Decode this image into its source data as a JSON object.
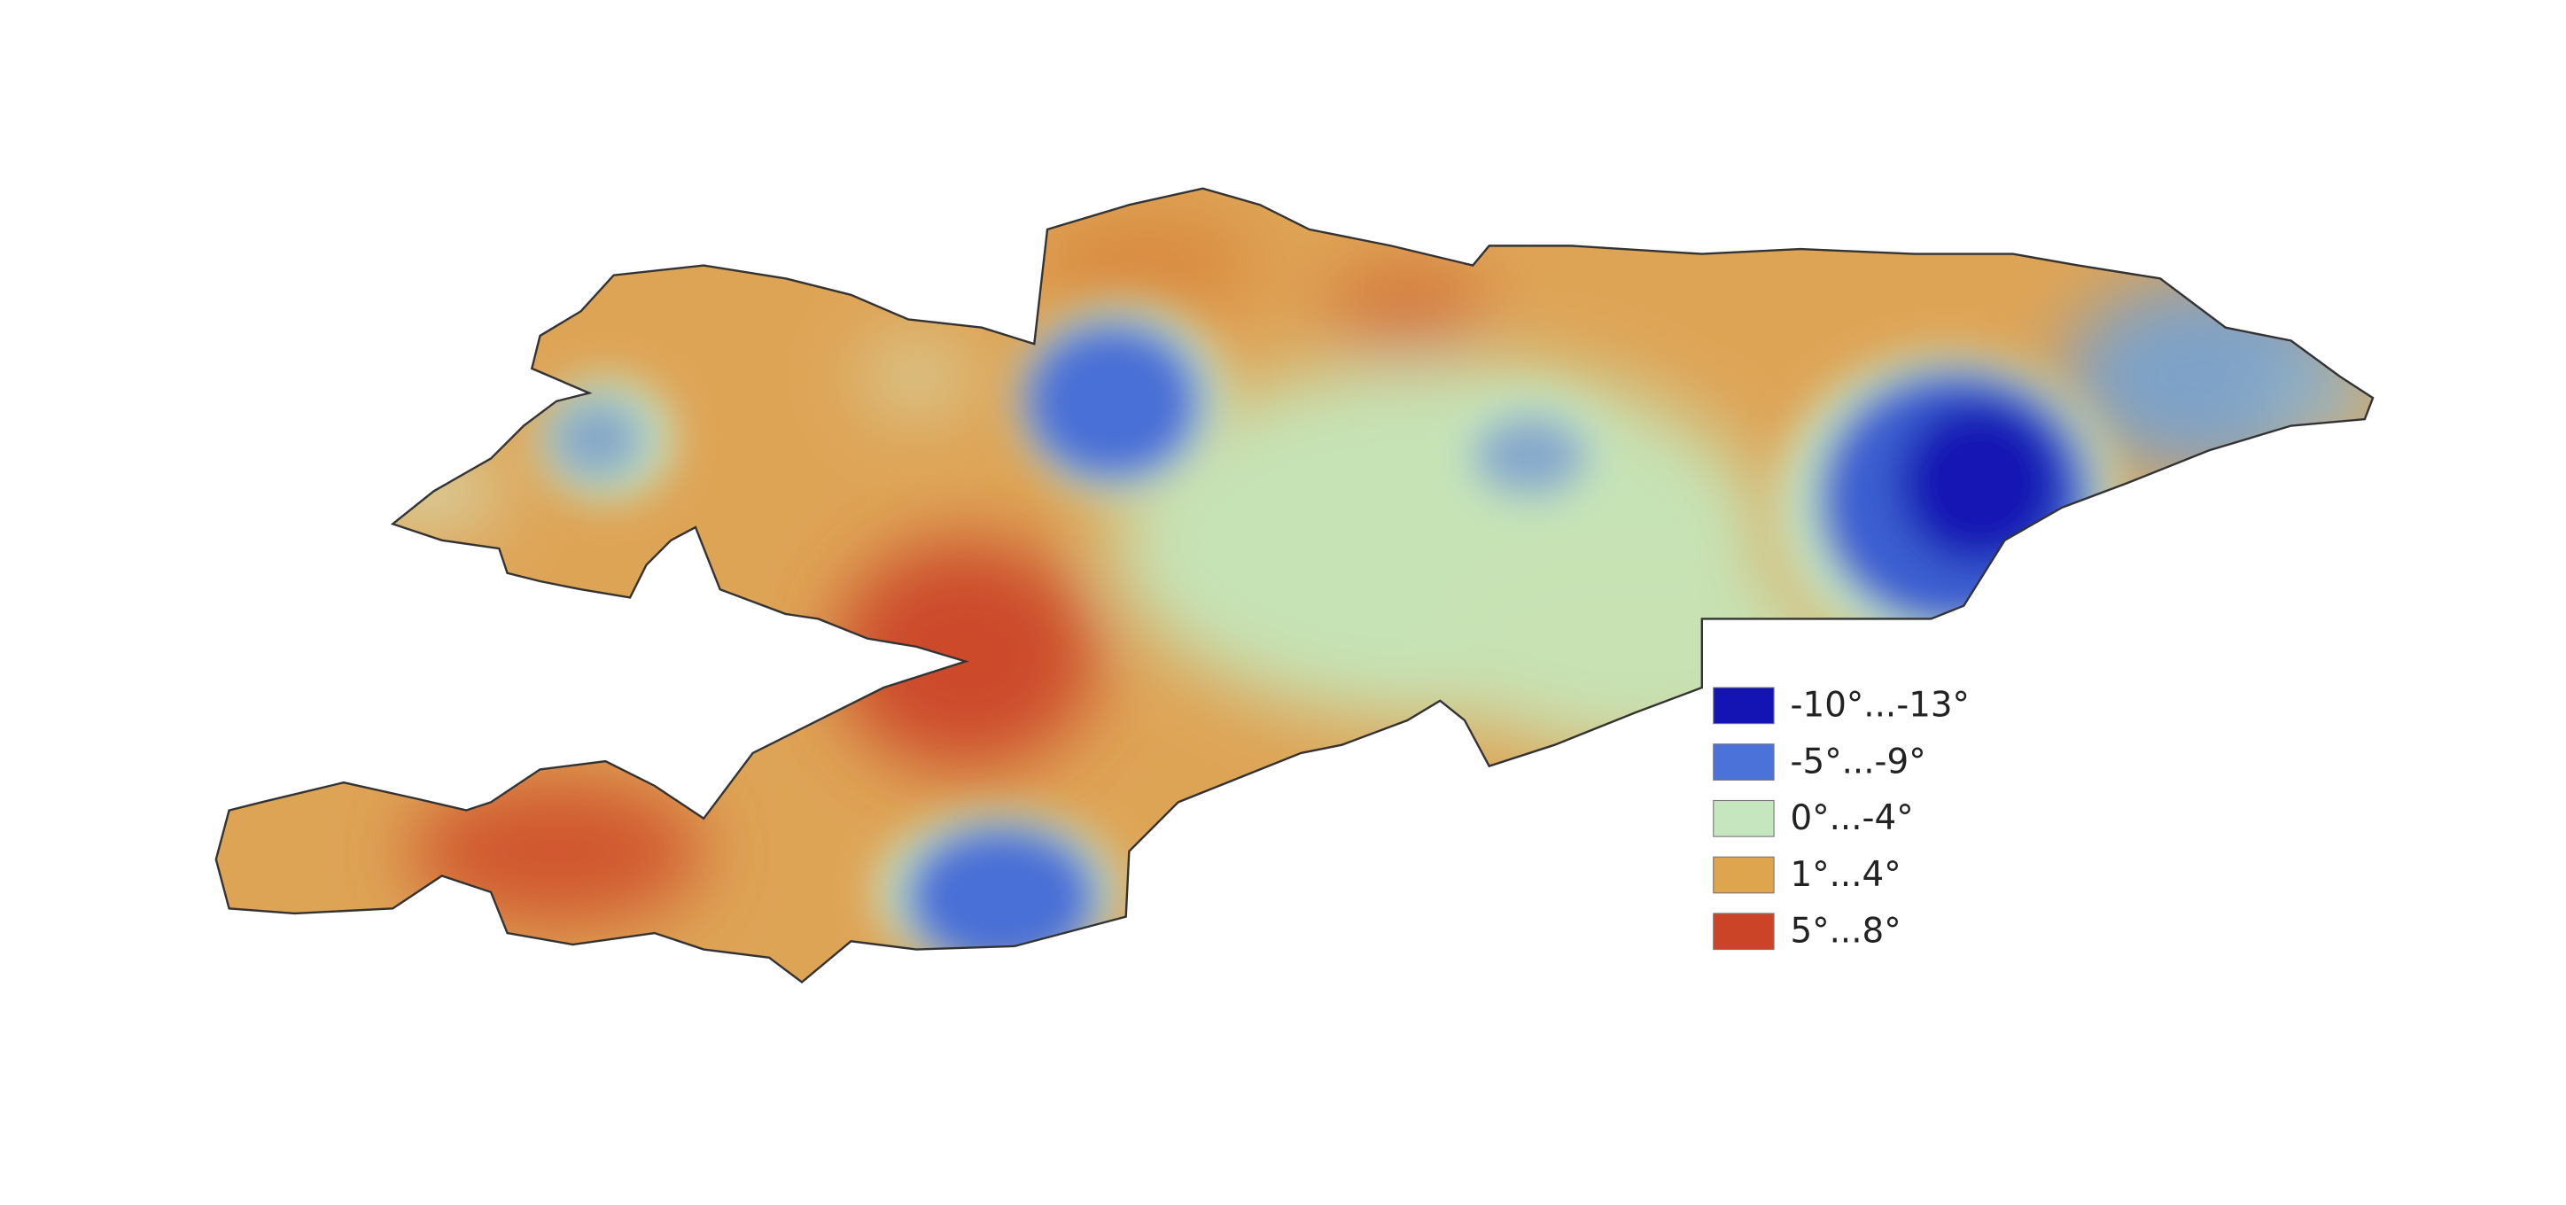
{
  "legend": {
    "items": [
      {
        "label": "-10°...-13°",
        "color": "#1414b4"
      },
      {
        "label": "-5°...-9°",
        "color": "#4a72d8"
      },
      {
        "label": "0°...-4°",
        "color": "#c6e6c0"
      },
      {
        "label": "1°...4°",
        "color": "#dea44e"
      },
      {
        "label": "5°...8°",
        "color": "#cc4428"
      }
    ]
  }
}
